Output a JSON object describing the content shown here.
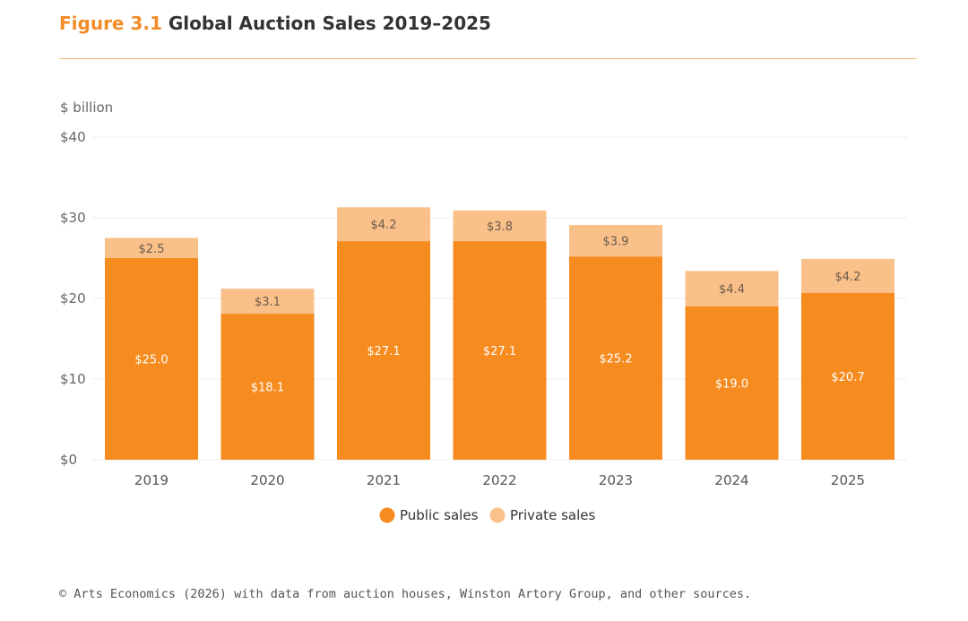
{
  "figure": {
    "label": "Figure 3.1",
    "title": "Global Auction Sales 2019–2025"
  },
  "footer": {
    "source": "© Arts Economics (2026) with data from auction houses, Winston Artory Group, and other sources."
  },
  "colors": {
    "public": "#f68b1f",
    "private": "#f9c08a",
    "accent": "#f28c28",
    "grid": "#eeeeee"
  },
  "chart_data": {
    "type": "bar",
    "stacked": true,
    "ylabel": "$ billion",
    "ylim": [
      0,
      40
    ],
    "yticks": [
      0,
      10,
      20,
      30,
      40
    ],
    "ytick_labels": [
      "$0",
      "$10",
      "$20",
      "$30",
      "$40"
    ],
    "categories": [
      "2019",
      "2020",
      "2021",
      "2022",
      "2023",
      "2024",
      "2025"
    ],
    "series": [
      {
        "name": "Public sales",
        "color": "#f68b1f",
        "values": [
          25.0,
          18.1,
          27.1,
          27.1,
          25.2,
          19.0,
          20.7
        ],
        "labels": [
          "$25.0",
          "$18.1",
          "$27.1",
          "$27.1",
          "$25.2",
          "$19.0",
          "$20.7"
        ]
      },
      {
        "name": "Private sales",
        "color": "#f9c08a",
        "values": [
          2.5,
          3.1,
          4.2,
          3.8,
          3.9,
          4.4,
          4.2
        ],
        "labels": [
          "$2.5",
          "$3.1",
          "$4.2",
          "$3.8",
          "$3.9",
          "$4.4",
          "$4.2"
        ]
      }
    ],
    "legend_position": "bottom-center"
  }
}
